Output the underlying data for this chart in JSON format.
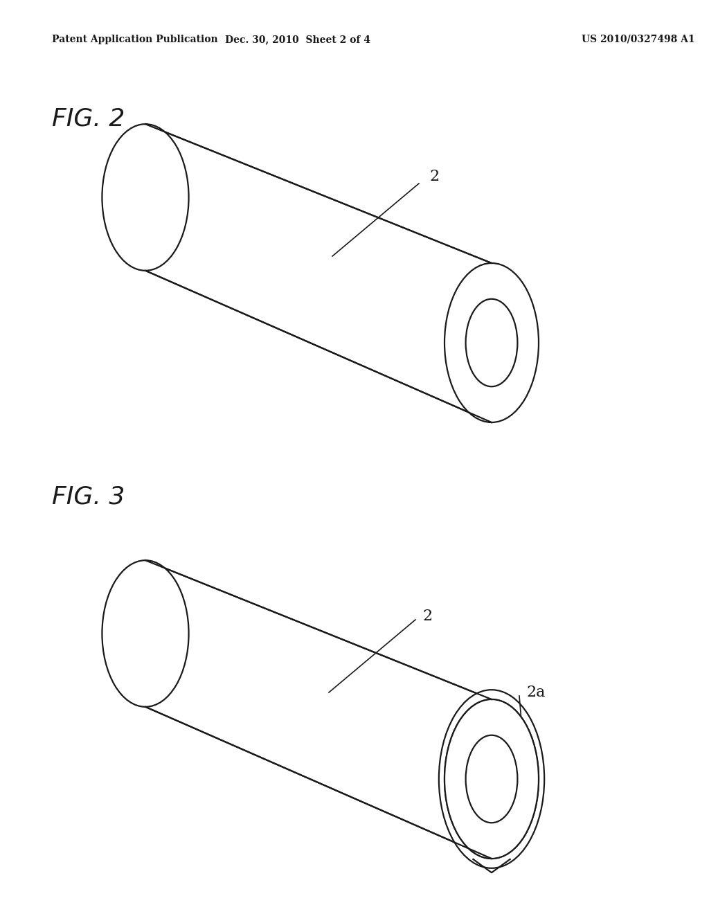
{
  "bg_color": "#ffffff",
  "line_color": "#1a1a1a",
  "line_width": 1.6,
  "header_left": "Patent Application Publication",
  "header_center": "Dec. 30, 2010  Sheet 2 of 4",
  "header_right": "US 2010/0327498 A1",
  "fig2_label": "FIG. 2",
  "fig3_label": "FIG. 3",
  "label2": "2",
  "label3": "2",
  "label3a": "2a"
}
